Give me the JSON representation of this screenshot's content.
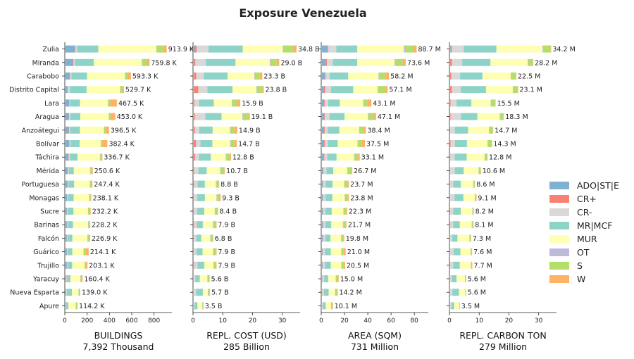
{
  "chart_data": {
    "type": "bar",
    "orientation": "horizontal",
    "stacked": true,
    "title": "Exposure Venezuela",
    "categories": [
      "Zulia",
      "Miranda",
      "Carabobo",
      "Distrito Capital",
      "Lara",
      "Aragua",
      "Anzoátegui",
      "Bolívar",
      "Táchira",
      "Mérida",
      "Portuguesa",
      "Monagas",
      "Sucre",
      "Barinas",
      "Falcón",
      "Guárico",
      "Trujillo",
      "Yaracuy",
      "Nueva Esparta",
      "Apure"
    ],
    "legend": {
      "placement": "right",
      "entries": [
        {
          "name": "ADO|ST|E",
          "color": "#80b1d3"
        },
        {
          "name": "CR+",
          "color": "#fb8072"
        },
        {
          "name": "CR-",
          "color": "#d9d9d9"
        },
        {
          "name": "MR|MCF",
          "color": "#8dd3c7"
        },
        {
          "name": "MUR",
          "color": "#ffffb3"
        },
        {
          "name": "OT",
          "color": "#bebada"
        },
        {
          "name": "S",
          "color": "#b3de69"
        },
        {
          "name": "W",
          "color": "#fdb462"
        }
      ]
    },
    "panels": [
      {
        "xlabel": "BUILDINGS",
        "total_label": "7,392 Thousand",
        "xlim": [
          0,
          960
        ],
        "xticks": [
          0,
          200,
          400,
          600,
          800
        ],
        "tick_labels": [
          "0",
          "200",
          "400",
          "600",
          "800"
        ],
        "value_labels": [
          "913.9 K",
          "759.8 K",
          "593.3 K",
          "529.7 K",
          "467.5 K",
          "453.0 K",
          "396.5 K",
          "382.4 K",
          "336.7 K",
          "250.6 K",
          "247.4 K",
          "238.1 K",
          "232.2 K",
          "228.2 K",
          "226.9 K",
          "214.1 K",
          "203.1 K",
          "160.4 K",
          "139.0 K",
          "114.2 K"
        ],
        "segments": [
          [
            90,
            5,
            15,
            190,
            520,
            3,
            60,
            31
          ],
          [
            70,
            8,
            12,
            170,
            430,
            5,
            40,
            25
          ],
          [
            45,
            3,
            12,
            140,
            340,
            3,
            25,
            25
          ],
          [
            22,
            3,
            20,
            150,
            300,
            3,
            20,
            12
          ],
          [
            38,
            2,
            6,
            90,
            250,
            3,
            18,
            60
          ],
          [
            36,
            3,
            10,
            90,
            255,
            3,
            16,
            40
          ],
          [
            35,
            3,
            8,
            90,
            215,
            2,
            14,
            30
          ],
          [
            40,
            3,
            10,
            80,
            190,
            2,
            12,
            45
          ],
          [
            32,
            3,
            10,
            70,
            200,
            2,
            10,
            10
          ],
          [
            25,
            3,
            8,
            45,
            145,
            3,
            12,
            10
          ],
          [
            22,
            4,
            8,
            50,
            140,
            2,
            12,
            10
          ],
          [
            20,
            3,
            8,
            48,
            140,
            2,
            10,
            7
          ],
          [
            18,
            2,
            8,
            50,
            130,
            2,
            14,
            8
          ],
          [
            18,
            3,
            8,
            45,
            135,
            2,
            12,
            5
          ],
          [
            18,
            2,
            8,
            40,
            135,
            2,
            12,
            10
          ],
          [
            18,
            2,
            8,
            40,
            100,
            2,
            14,
            30
          ],
          [
            18,
            2,
            6,
            40,
            110,
            2,
            10,
            15
          ],
          [
            12,
            2,
            6,
            30,
            90,
            2,
            10,
            8
          ],
          [
            10,
            2,
            6,
            45,
            60,
            2,
            10,
            4
          ],
          [
            8,
            1,
            4,
            20,
            65,
            2,
            8,
            6
          ]
        ]
      },
      {
        "xlabel": "REPL. COST (USD)",
        "total_label": "285 Billion",
        "xlim": [
          0,
          36
        ],
        "xticks": [
          0,
          10,
          20,
          30
        ],
        "tick_labels": [
          "0",
          "10",
          "20",
          "30"
        ],
        "value_labels": [
          "34.8 B",
          "29.0 B",
          "23.3 B",
          "23.8 B",
          "15.9 B",
          "19.1 B",
          "14.9 B",
          "14.7 B",
          "12.8 B",
          "10.7 B",
          "8.8 B",
          "9.3 B",
          "8.4 B",
          "7.9 B",
          "6.8 B",
          "7.9 B",
          "7.9 B",
          "5.6 B",
          "5.7 B",
          "3.5 B"
        ],
        "segments": [
          [
            0.6,
            0.6,
            4.0,
            11.5,
            13.5,
            0.4,
            3.0,
            1.2
          ],
          [
            0.3,
            0.5,
            3.5,
            10.0,
            11.5,
            0.3,
            2.0,
            0.9
          ],
          [
            0.3,
            0.8,
            2.5,
            8.0,
            9.0,
            0.2,
            1.5,
            1.0
          ],
          [
            0.3,
            1.5,
            3.0,
            8.5,
            8.0,
            0.2,
            1.8,
            0.5
          ],
          [
            0.2,
            0.3,
            1.5,
            5.0,
            6.0,
            0.2,
            1.5,
            1.2
          ],
          [
            0.2,
            0.4,
            3.5,
            5.5,
            7.0,
            0.2,
            1.8,
            0.5
          ],
          [
            0.2,
            0.4,
            1.5,
            4.5,
            5.8,
            0.2,
            1.2,
            1.1
          ],
          [
            0.2,
            0.8,
            1.5,
            4.0,
            6.0,
            0.2,
            1.2,
            0.8
          ],
          [
            0.1,
            0.6,
            1.3,
            4.0,
            5.0,
            0.2,
            1.2,
            0.4
          ],
          [
            0.1,
            0.3,
            1.4,
            2.8,
            4.5,
            0.2,
            1.2,
            0.2
          ],
          [
            0.1,
            0.3,
            1.1,
            2.5,
            3.7,
            0.2,
            0.8,
            0.1
          ],
          [
            0.1,
            0.2,
            1.1,
            2.6,
            3.9,
            0.2,
            0.9,
            0.3
          ],
          [
            0.1,
            0.2,
            1.1,
            2.4,
            3.5,
            0.2,
            0.8,
            0.1
          ],
          [
            0.1,
            0.3,
            0.9,
            2.0,
            3.4,
            0.2,
            0.9,
            0.1
          ],
          [
            0.1,
            0.2,
            0.8,
            1.7,
            3.0,
            0.2,
            0.7,
            0.1
          ],
          [
            0.1,
            0.2,
            0.9,
            2.0,
            3.5,
            0.2,
            0.9,
            0.1
          ],
          [
            0.1,
            0.3,
            1.1,
            2.3,
            3.1,
            0.2,
            0.7,
            0.1
          ],
          [
            0.1,
            0.1,
            0.6,
            1.5,
            2.5,
            0.1,
            0.6,
            0.1
          ],
          [
            0.1,
            0.1,
            0.8,
            2.3,
            1.7,
            0.1,
            0.5,
            0.1
          ],
          [
            0.1,
            0.1,
            0.3,
            1.0,
            1.6,
            0.1,
            0.2,
            0.1
          ]
        ]
      },
      {
        "xlabel": "AREA (SQM)",
        "total_label": "731 Million",
        "xlim": [
          0,
          92
        ],
        "xticks": [
          0,
          20,
          40,
          60,
          80
        ],
        "tick_labels": [
          "0",
          "20",
          "40",
          "60",
          "80"
        ],
        "value_labels": [
          "88.7 M",
          "73.6 M",
          "58.2 M",
          "57.1 M",
          "43.1 M",
          "47.1 M",
          "38.4 M",
          "37.5 M",
          "33.1 M",
          "26.7 M",
          "23.7 M",
          "23.8 M",
          "22.3 M",
          "21.7 M",
          "19.8 M",
          "21.0 M",
          "20.5 M",
          "15.0 M",
          "14.2 M",
          "10.1 M"
        ],
        "segments": [
          [
            5,
            1,
            7,
            18,
            40,
            1,
            7,
            3
          ],
          [
            4,
            1,
            5,
            21,
            32,
            1,
            6,
            2.6
          ],
          [
            3,
            0.7,
            3.5,
            16,
            26,
            0.5,
            5,
            3.5
          ],
          [
            2,
            1.5,
            5,
            19,
            21,
            0.5,
            6,
            2.1
          ],
          [
            2.5,
            0.5,
            3,
            10,
            20,
            0.5,
            3,
            3.6
          ],
          [
            2.5,
            0.6,
            4,
            13,
            20,
            0.5,
            4,
            2.5
          ],
          [
            2.5,
            0.6,
            2.5,
            10,
            17,
            0.4,
            3.2,
            2.2
          ],
          [
            2.5,
            0.7,
            2.5,
            8.5,
            17,
            0.4,
            3,
            2.9
          ],
          [
            2.2,
            0.5,
            2.5,
            8,
            15,
            0.4,
            3,
            1.5
          ],
          [
            1.4,
            0.5,
            2.5,
            6,
            12,
            0.4,
            3,
            0.9
          ],
          [
            1.3,
            0.4,
            2,
            6,
            10,
            0.3,
            2.5,
            1.2
          ],
          [
            1.2,
            0.4,
            2,
            6,
            10.5,
            0.3,
            2.4,
            1.0
          ],
          [
            1.2,
            0.3,
            2,
            5.5,
            10,
            0.3,
            2.2,
            0.8
          ],
          [
            1.2,
            0.4,
            2,
            5,
            10,
            0.3,
            2,
            0.8
          ],
          [
            1.2,
            0.3,
            2,
            4.5,
            9,
            0.3,
            1.8,
            0.7
          ],
          [
            1.1,
            0.3,
            1.8,
            5,
            9,
            0.3,
            1.8,
            1.7
          ],
          [
            1.1,
            0.3,
            1.8,
            5,
            9,
            0.3,
            1.5,
            1.5
          ],
          [
            0.8,
            0.2,
            1.5,
            3.5,
            6.5,
            0.2,
            1.5,
            0.8
          ],
          [
            0.7,
            0.2,
            1.5,
            4,
            5.5,
            0.2,
            1.4,
            0.7
          ],
          [
            0.5,
            0.1,
            0.8,
            2.5,
            4.5,
            0.2,
            1,
            0.5
          ]
        ]
      },
      {
        "xlabel": "REPL. CARBON TON",
        "total_label": "279 Million",
        "xlim": [
          0,
          36
        ],
        "xticks": [
          0,
          10,
          20,
          30
        ],
        "tick_labels": [
          "0",
          "10",
          "20",
          "30"
        ],
        "value_labels": [
          "34.2 M",
          "28.2 M",
          "22.5 M",
          "23.1 M",
          "15.5 M",
          "18.3 M",
          "14.7 M",
          "14.3 M",
          "12.8 M",
          "10.6 M",
          "8.6 M",
          "9.1 M",
          "8.2 M",
          "8.1 M",
          "7.3 M",
          "7.6 M",
          "7.7 M",
          "5.6 M",
          "5.6 M",
          "3.5 M"
        ],
        "segments": [
          [
            0.4,
            0.4,
            4.0,
            11.0,
            15.5,
            0.4,
            2.3,
            0.2
          ],
          [
            0.2,
            0.6,
            3.5,
            9.5,
            12.5,
            0.2,
            1.5,
            0.2
          ],
          [
            0.2,
            0.4,
            3.0,
            7.5,
            9.5,
            0.2,
            1.5,
            0.2
          ],
          [
            0.2,
            0.6,
            3.0,
            8.5,
            9.0,
            0.2,
            1.4,
            0.2
          ],
          [
            0.1,
            0.3,
            2.0,
            5.0,
            6.5,
            0.2,
            1.3,
            0.1
          ],
          [
            0.1,
            0.3,
            3.5,
            5.5,
            7.5,
            0.2,
            1.1,
            0.1
          ],
          [
            0.1,
            0.2,
            1.5,
            4.5,
            7.0,
            0.2,
            1.1,
            0.1
          ],
          [
            0.1,
            0.3,
            1.5,
            4.0,
            6.9,
            0.2,
            1.2,
            0.1
          ],
          [
            0.1,
            0.2,
            1.5,
            4.0,
            6.0,
            0.1,
            0.8,
            0.1
          ],
          [
            0.1,
            0.2,
            1.5,
            3.0,
            5.0,
            0.1,
            0.6,
            0.1
          ],
          [
            0.1,
            0.2,
            1.0,
            2.5,
            4.2,
            0.1,
            0.4,
            0.1
          ],
          [
            0.1,
            0.1,
            1.5,
            3.0,
            3.8,
            0.1,
            0.4,
            0.1
          ],
          [
            0.1,
            0.2,
            1.0,
            2.5,
            3.9,
            0.1,
            0.3,
            0.1
          ],
          [
            0.1,
            0.2,
            1.0,
            2.2,
            4.0,
            0.1,
            0.4,
            0.1
          ],
          [
            0.1,
            0.1,
            0.7,
            1.8,
            4.0,
            0.1,
            0.4,
            0.1
          ],
          [
            0.1,
            0.1,
            1.2,
            2.3,
            3.4,
            0.1,
            0.3,
            0.1
          ],
          [
            0.1,
            0.2,
            1.0,
            2.2,
            3.7,
            0.1,
            0.3,
            0.1
          ],
          [
            0.1,
            0.1,
            0.6,
            1.6,
            2.8,
            0.1,
            0.2,
            0.1
          ],
          [
            0.1,
            0.1,
            0.8,
            2.2,
            2.1,
            0.1,
            0.2,
            0.0
          ],
          [
            0.1,
            0.1,
            0.5,
            0.9,
            1.7,
            0.1,
            0.1,
            0.0
          ]
        ]
      }
    ]
  }
}
